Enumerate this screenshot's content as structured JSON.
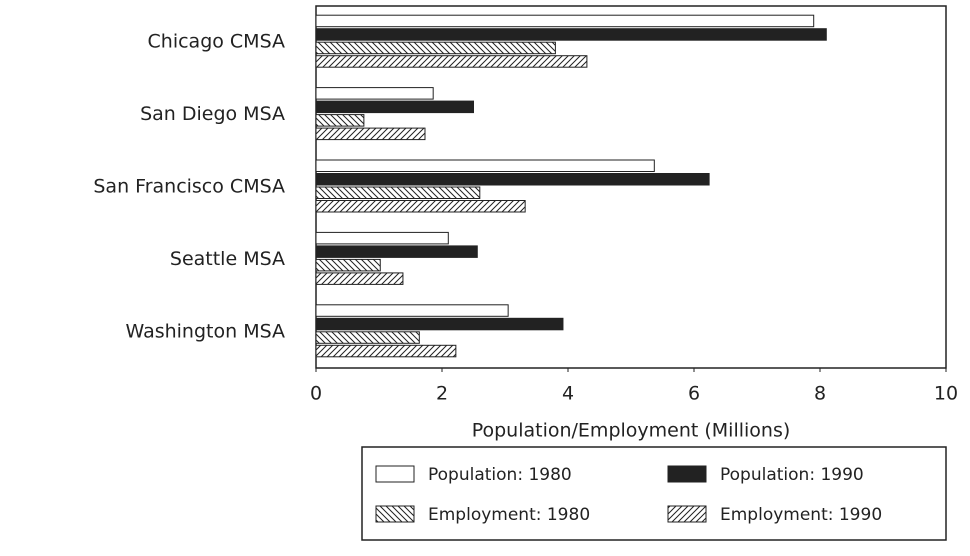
{
  "chart_data": {
    "type": "hbar",
    "xlabel": "Population/Employment (Millions)",
    "categories": [
      "Chicago CMSA",
      "San Diego MSA",
      "San Francisco CMSA",
      "Seattle MSA",
      "Washington MSA"
    ],
    "series": [
      {
        "name": "Population: 1980",
        "color": "#ffffff",
        "hatch": "none",
        "values": [
          7.9,
          1.86,
          5.37,
          2.1,
          3.05
        ]
      },
      {
        "name": "Population: 1990",
        "color": "#222222",
        "hatch": "none",
        "values": [
          8.1,
          2.5,
          6.24,
          2.56,
          3.92
        ]
      },
      {
        "name": "Employment: 1980",
        "color": "#ffffff",
        "hatch": "back-diagonal",
        "values": [
          3.8,
          0.76,
          2.6,
          1.02,
          1.64
        ]
      },
      {
        "name": "Employment: 1990",
        "color": "#ffffff",
        "hatch": "diagonal",
        "values": [
          4.3,
          1.73,
          3.32,
          1.38,
          2.22
        ]
      }
    ],
    "xlim": [
      0,
      10
    ],
    "xticks": [
      0,
      2,
      4,
      6,
      8,
      10
    ],
    "grid": false,
    "legend": "bottom"
  }
}
